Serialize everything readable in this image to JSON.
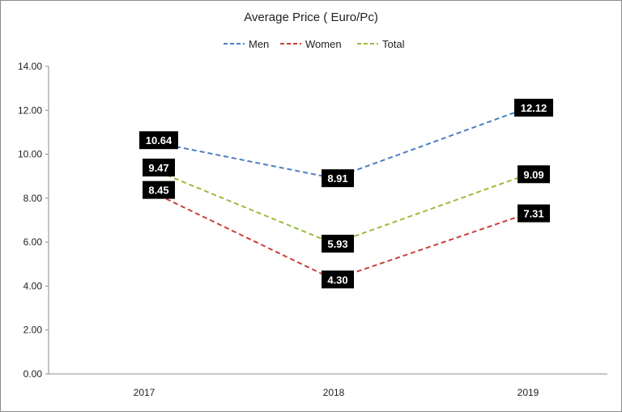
{
  "chart_data": {
    "type": "line",
    "title": "Average Price ( Euro/Pc)",
    "categories": [
      "2017",
      "2018",
      "2019"
    ],
    "ylim": [
      0,
      14
    ],
    "yticks": [
      "0.00",
      "2.00",
      "4.00",
      "6.00",
      "8.00",
      "10.00",
      "12.00",
      "14.00"
    ],
    "grid": false,
    "legend_position": "top",
    "series": [
      {
        "name": "Men",
        "values": [
          10.64,
          8.91,
          12.12
        ],
        "labels": [
          "10.64",
          "8.91",
          "12.12"
        ],
        "color": "#4a7fbf"
      },
      {
        "name": "Women",
        "values": [
          8.45,
          4.3,
          7.31
        ],
        "labels": [
          "8.45",
          "4.30",
          "7.31"
        ],
        "color": "#c9403d"
      },
      {
        "name": "Total",
        "values": [
          9.47,
          5.93,
          9.09
        ],
        "labels": [
          "9.47",
          "5.93",
          "9.09"
        ],
        "color": "#9bbb3c"
      }
    ]
  }
}
